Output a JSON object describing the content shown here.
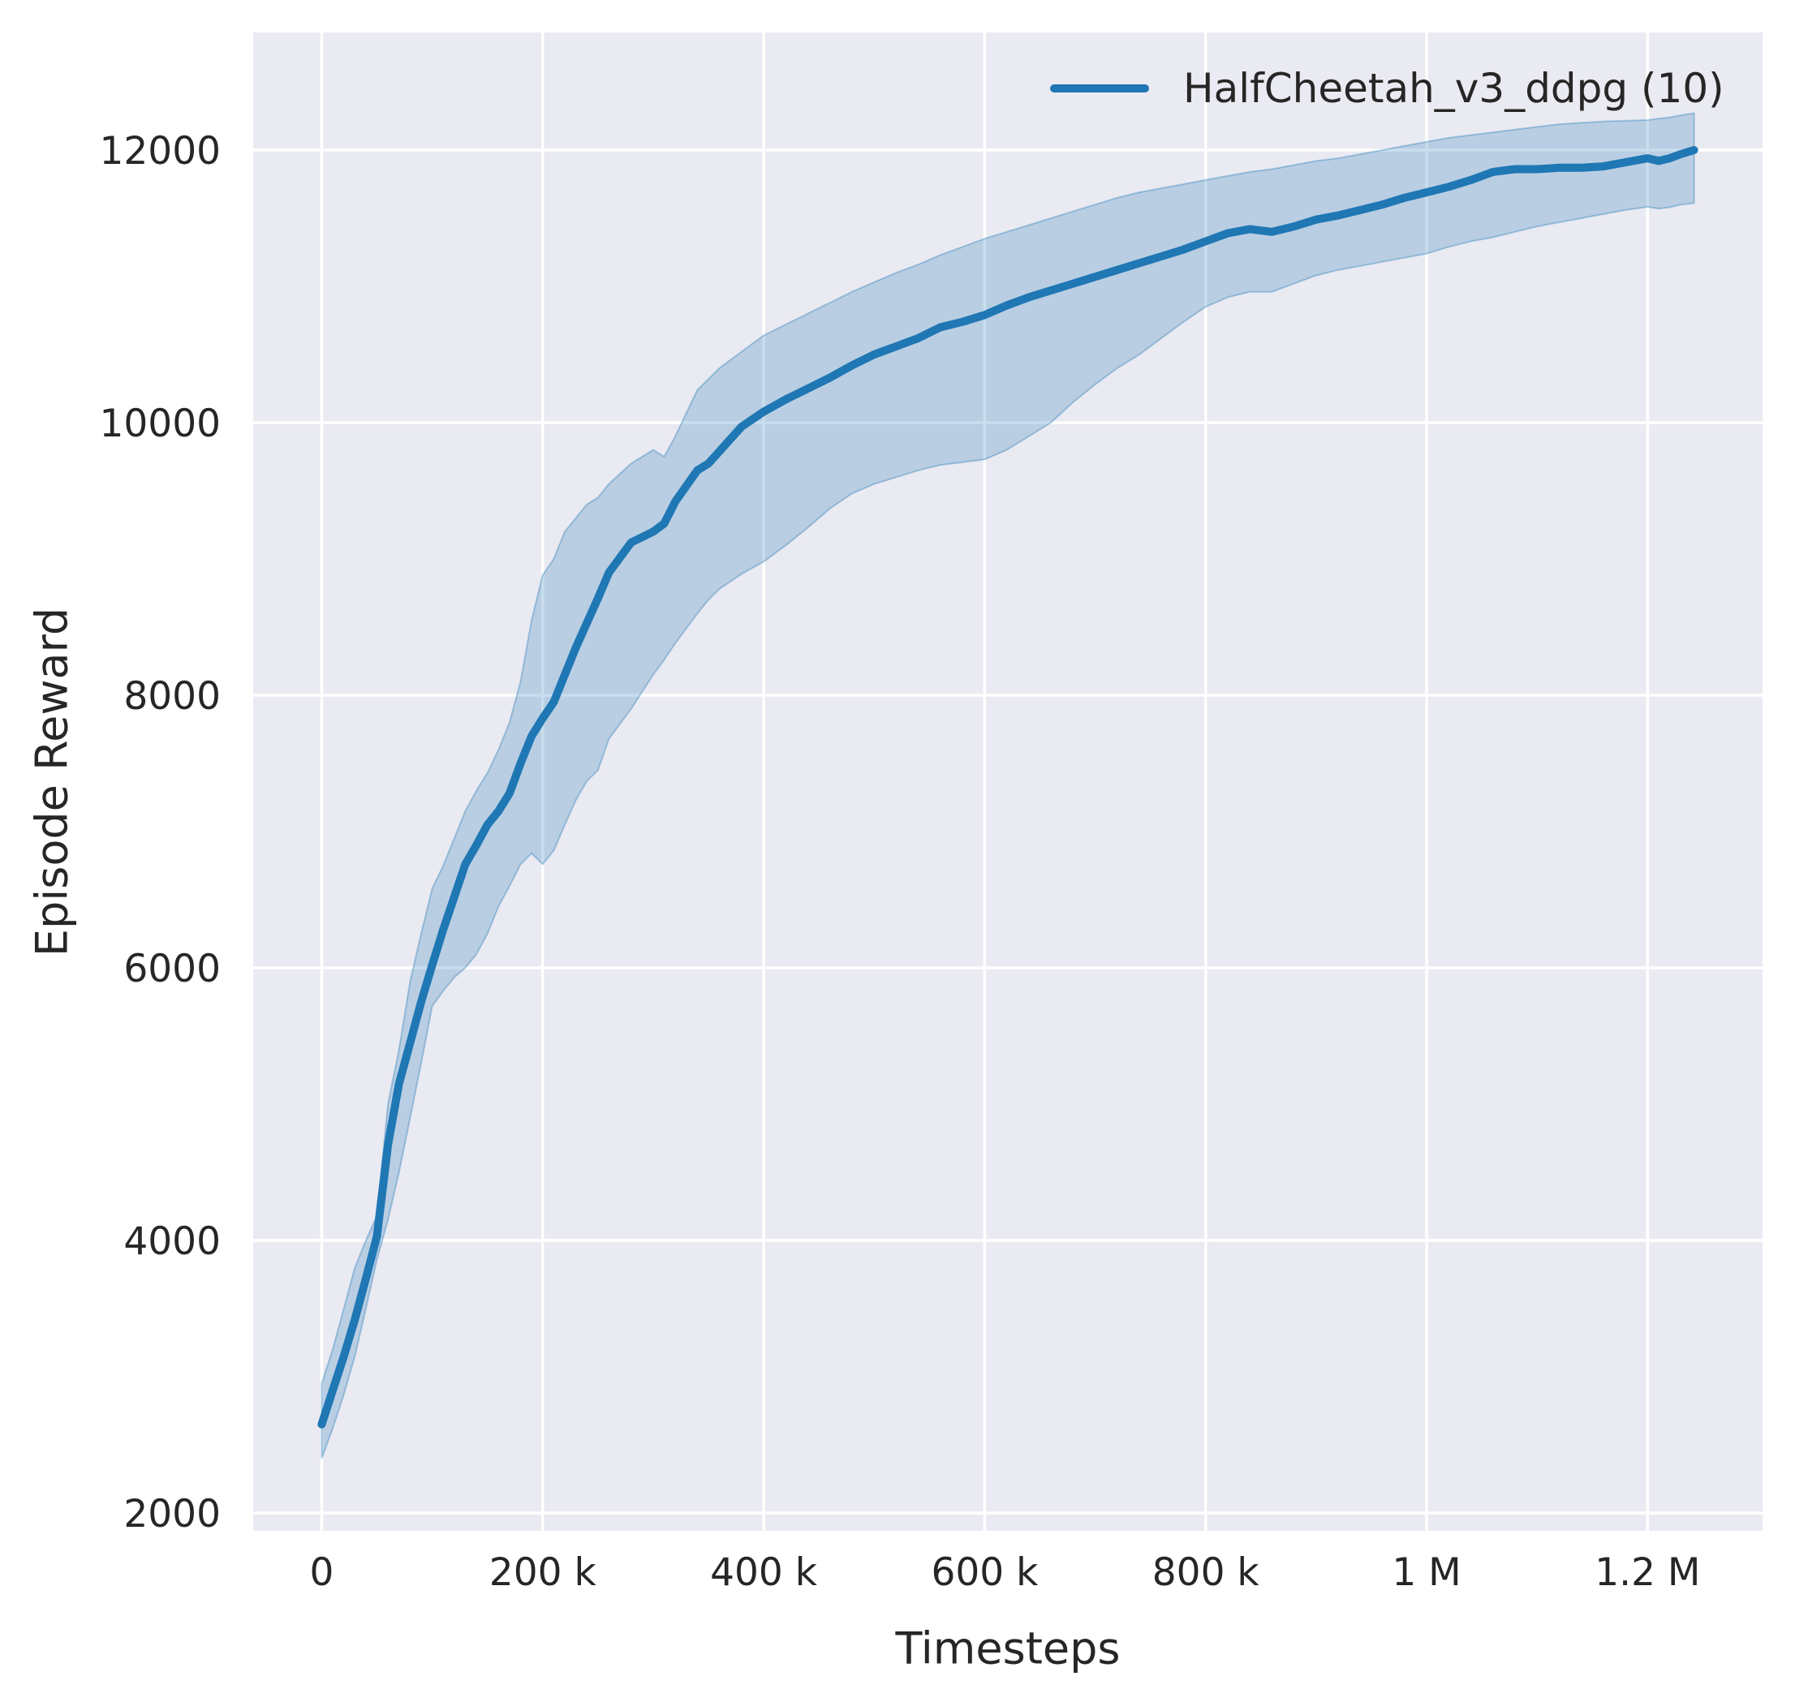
{
  "chart": {
    "legend": {
      "label": "HalfCheetah_v3_ddpg (10)",
      "swatch_color": "#1f77b4"
    }
  },
  "chart_data": {
    "type": "line",
    "title": "",
    "xlabel": "Timesteps",
    "ylabel": "Episode Reward",
    "xlim": [
      -62000,
      1304000
    ],
    "ylim": [
      1869,
      12863
    ],
    "grid": true,
    "grid_color": "#ffffff",
    "plot_background": "#eaeaf2",
    "legend_position": "upper right",
    "x_ticks": {
      "values": [
        0,
        200000,
        400000,
        600000,
        800000,
        1000000,
        1200000
      ],
      "labels": [
        "0",
        "200 k",
        "400 k",
        "600 k",
        "800 k",
        "1 M",
        "1.2 M"
      ]
    },
    "y_ticks": {
      "values": [
        2000,
        4000,
        6000,
        8000,
        10000,
        12000
      ],
      "labels": [
        "2000",
        "4000",
        "6000",
        "8000",
        "10000",
        "12000"
      ]
    },
    "series": [
      {
        "name": "HalfCheetah_v3_ddpg (10)",
        "color": "#1f77b4",
        "band_fill_alpha": 0.24,
        "band_edge_alpha": 0.35,
        "x": [
          0,
          10000,
          20000,
          30000,
          40000,
          50000,
          60000,
          70000,
          80000,
          90000,
          100000,
          110000,
          120000,
          130000,
          140000,
          150000,
          160000,
          170000,
          180000,
          190000,
          200000,
          210000,
          220000,
          230000,
          240000,
          250000,
          260000,
          280000,
          300000,
          310000,
          320000,
          340000,
          350000,
          360000,
          380000,
          400000,
          420000,
          440000,
          460000,
          480000,
          500000,
          520000,
          540000,
          560000,
          580000,
          600000,
          620000,
          640000,
          660000,
          680000,
          700000,
          720000,
          740000,
          760000,
          780000,
          800000,
          820000,
          840000,
          860000,
          880000,
          900000,
          920000,
          940000,
          960000,
          980000,
          1000000,
          1020000,
          1040000,
          1060000,
          1080000,
          1100000,
          1120000,
          1140000,
          1160000,
          1180000,
          1200000,
          1210000,
          1220000,
          1230000,
          1242000
        ],
        "mean": [
          2650,
          2900,
          3150,
          3420,
          3720,
          4030,
          4700,
          5150,
          5450,
          5750,
          6020,
          6280,
          6520,
          6760,
          6900,
          7050,
          7150,
          7280,
          7500,
          7700,
          7830,
          7950,
          8150,
          8350,
          8530,
          8710,
          8900,
          9120,
          9200,
          9260,
          9420,
          9650,
          9700,
          9790,
          9970,
          10080,
          10170,
          10250,
          10330,
          10420,
          10500,
          10560,
          10620,
          10700,
          10740,
          10790,
          10860,
          10920,
          10970,
          11020,
          11070,
          11120,
          11170,
          11220,
          11270,
          11330,
          11390,
          11420,
          11400,
          11440,
          11490,
          11520,
          11560,
          11600,
          11650,
          11690,
          11730,
          11780,
          11840,
          11860,
          11860,
          11870,
          11870,
          11880,
          11910,
          11940,
          11920,
          11940,
          11970,
          12000
        ],
        "lower": [
          2400,
          2620,
          2870,
          3150,
          3500,
          3860,
          4150,
          4500,
          4900,
          5300,
          5720,
          5830,
          5930,
          6000,
          6100,
          6250,
          6450,
          6600,
          6760,
          6840,
          6760,
          6860,
          7050,
          7230,
          7370,
          7450,
          7680,
          7900,
          8150,
          8260,
          8380,
          8600,
          8700,
          8780,
          8890,
          8980,
          9100,
          9230,
          9370,
          9480,
          9550,
          9600,
          9650,
          9690,
          9710,
          9730,
          9800,
          9900,
          10000,
          10150,
          10280,
          10400,
          10500,
          10620,
          10740,
          10850,
          10920,
          10960,
          10960,
          11020,
          11080,
          11120,
          11150,
          11180,
          11210,
          11240,
          11290,
          11330,
          11360,
          11400,
          11440,
          11470,
          11500,
          11530,
          11560,
          11583,
          11570,
          11580,
          11600,
          11610
        ],
        "upper": [
          2950,
          3200,
          3500,
          3800,
          4000,
          4180,
          5000,
          5400,
          5900,
          6250,
          6580,
          6750,
          6950,
          7150,
          7300,
          7430,
          7600,
          7800,
          8100,
          8550,
          8880,
          9000,
          9200,
          9300,
          9400,
          9450,
          9550,
          9700,
          9800,
          9750,
          9900,
          10240,
          10320,
          10400,
          10520,
          10640,
          10720,
          10800,
          10880,
          10960,
          11030,
          11100,
          11160,
          11230,
          11290,
          11350,
          11400,
          11450,
          11500,
          11550,
          11600,
          11650,
          11690,
          11720,
          11750,
          11780,
          11810,
          11840,
          11860,
          11890,
          11920,
          11940,
          11970,
          12000,
          12030,
          12060,
          12090,
          12110,
          12130,
          12150,
          12170,
          12190,
          12200,
          12210,
          12215,
          12220,
          12230,
          12240,
          12255,
          12270
        ]
      }
    ]
  }
}
